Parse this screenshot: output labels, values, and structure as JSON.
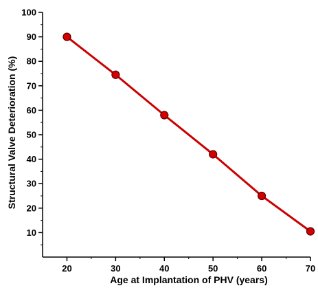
{
  "chart_data": {
    "type": "line",
    "title": "",
    "xlabel": "Age at Implantation of PHV (years)",
    "ylabel": "Structural Valve Deterioration (%)",
    "xlim": [
      15,
      70
    ],
    "ylim": [
      0,
      100
    ],
    "x_ticks": [
      20,
      30,
      40,
      50,
      60,
      70
    ],
    "y_ticks": [
      10,
      20,
      30,
      40,
      50,
      60,
      70,
      80,
      90,
      100
    ],
    "grid": false,
    "legend": "none",
    "series": [
      {
        "x": [
          20,
          30,
          40,
          50,
          60,
          70
        ],
        "values": [
          90,
          74.5,
          58,
          42,
          25,
          10.5
        ],
        "color": "#cc0000",
        "marker_color": "#d40000"
      }
    ]
  }
}
